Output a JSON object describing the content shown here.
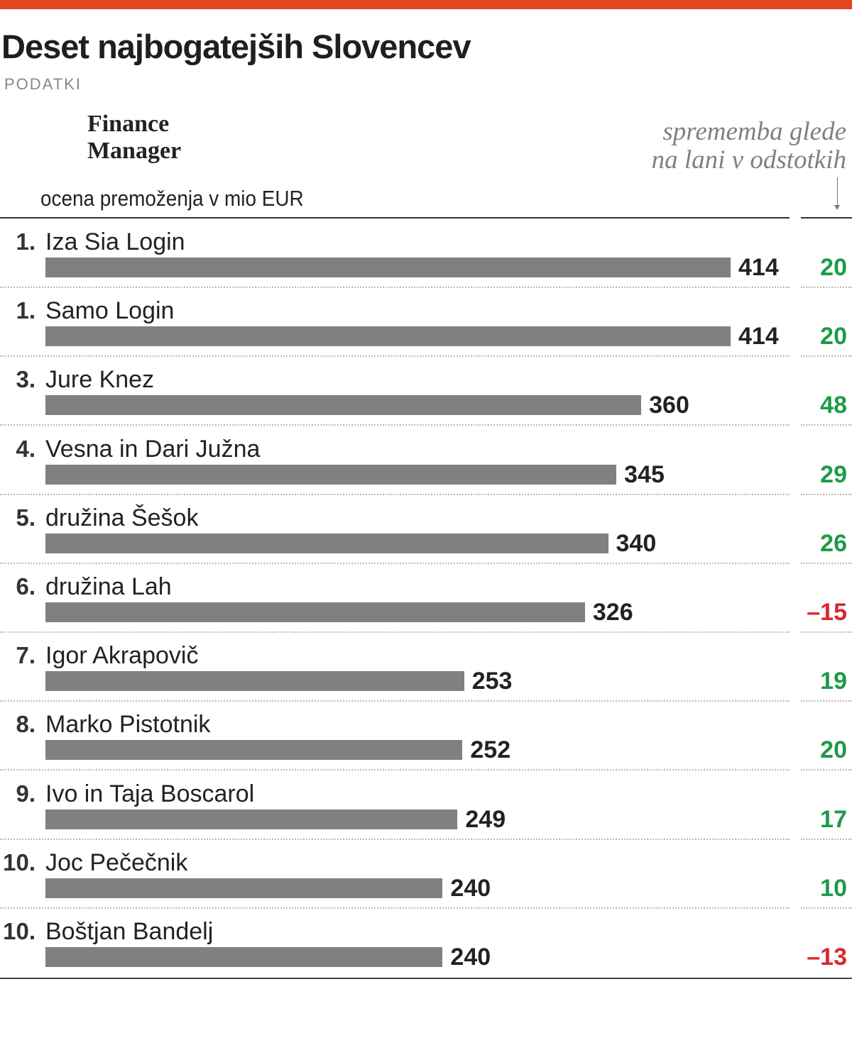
{
  "header": {
    "title": "Deset najbogatejših Slovencev",
    "source_label": "PODATKI",
    "source": "Finance Manager"
  },
  "colors": {
    "accent": "#e64523",
    "bar": "#808080",
    "positive": "#1f9a48",
    "negative": "#d9272e"
  },
  "chart_data": {
    "type": "bar",
    "orientation": "horizontal",
    "title": "Deset najbogatejših Slovencev",
    "xlabel": "ocena premoženja v mio EUR",
    "change_label_line1": "sprememba glede",
    "change_label_line2": "na lani v odstotkih",
    "xlim": [
      0,
      414
    ],
    "ranks": [
      "1.",
      "1.",
      "3.",
      "4.",
      "5.",
      "6.",
      "7.",
      "8.",
      "9.",
      "10.",
      "10."
    ],
    "categories": [
      "Iza Sia Login",
      "Samo Login",
      "Jure Knez",
      "Vesna in Dari Južna",
      "družina Šešok",
      "družina Lah",
      "Igor Akrapovič",
      "Marko Pistotnik",
      "Ivo in Taja Boscarol",
      "Joc Pečečnik",
      "Boštjan Bandelj"
    ],
    "values": [
      414,
      414,
      360,
      345,
      340,
      326,
      253,
      252,
      249,
      240,
      240
    ],
    "change_labels": [
      "20",
      "20",
      "48",
      "29",
      "26",
      "–15",
      "19",
      "20",
      "17",
      "10",
      "–13"
    ],
    "change_pct": [
      20,
      20,
      48,
      29,
      26,
      -15,
      19,
      20,
      17,
      10,
      -13
    ]
  }
}
